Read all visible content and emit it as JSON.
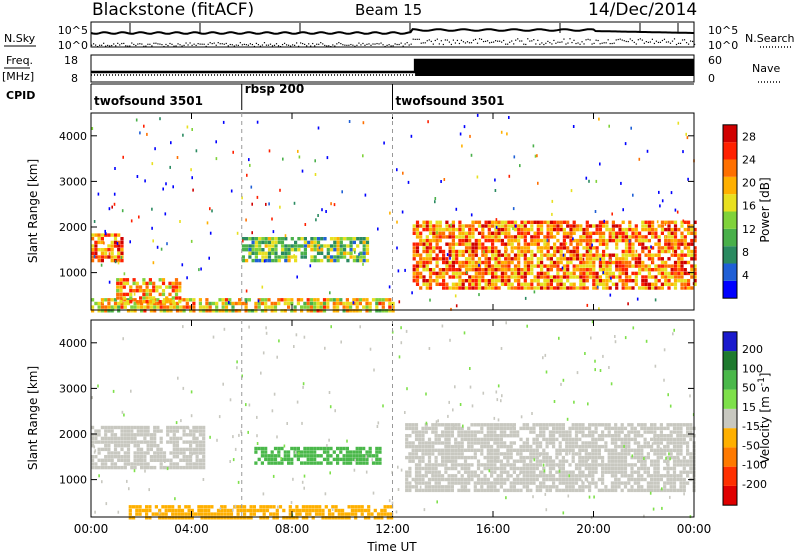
{
  "header": {
    "radar": "Blackstone (fitACF)",
    "beam": "Beam 15",
    "date": "14/Dec/2014"
  },
  "panel_labels": {
    "nsky": "N.Sky",
    "nsearch": "N.Search",
    "freq_top": "Freq.",
    "freq_unit": "[MHz]",
    "nave": "Nave",
    "cpid": "CPID"
  },
  "colors": {
    "power_scale": [
      "#0000ff",
      "#1f5fd6",
      "#2a8a60",
      "#49b04a",
      "#7fd23a",
      "#e8e020",
      "#ffb000",
      "#ff7000",
      "#ff2000",
      "#d00000"
    ],
    "velocity_scale": [
      "#1a1acd",
      "#1e7a2e",
      "#4ab84a",
      "#7ee04a",
      "#c8c8c0",
      "#ffb000",
      "#ff7a00",
      "#ff3000",
      "#e00000"
    ]
  },
  "chart_data": [
    {
      "type": "line",
      "panel": "noise",
      "left_axis_ticks": [
        "10^5",
        "10^0"
      ],
      "right_axis_ticks": [
        "10^5",
        "10^0"
      ],
      "series": [
        {
          "name": "N.Sky",
          "style": "solid"
        },
        {
          "name": "N.Search",
          "style": "dotted"
        }
      ]
    },
    {
      "type": "line",
      "panel": "frequency",
      "left_axis_ticks": [
        18,
        8
      ],
      "right_axis_ticks": [
        60,
        0
      ],
      "series": [
        {
          "name": "Freq. [MHz]",
          "style": "solid"
        },
        {
          "name": "Nave",
          "style": "dotted"
        }
      ]
    },
    {
      "type": "table",
      "panel": "cpid",
      "segments": [
        {
          "label": "twofsound 3501",
          "start": "00:00",
          "end": "06:00"
        },
        {
          "label": "rbsp 200",
          "start": "06:00",
          "end": "12:00"
        },
        {
          "label": "twofsound 3501",
          "start": "12:00",
          "end": "24:00"
        }
      ]
    },
    {
      "type": "heatmap",
      "panel": "power",
      "ylabel": "Slant Range [km]",
      "xlabel": "",
      "x_ticks": [
        "00:00",
        "04:00",
        "08:00",
        "12:00",
        "16:00",
        "20:00",
        "00:00"
      ],
      "y_ticks": [
        1000,
        2000,
        3000,
        4000
      ],
      "ylim": [
        180,
        4500
      ],
      "colorbar_label": "Power [dB]",
      "colorbar_ticks": [
        4,
        8,
        12,
        16,
        20,
        24,
        28
      ],
      "colorbar_range": [
        0,
        30
      ],
      "regions": [
        {
          "t0": 0.0,
          "t1": 1.2,
          "r0": 1300,
          "r1": 1900,
          "level": 22
        },
        {
          "t0": 0.0,
          "t1": 12.0,
          "r0": 200,
          "r1": 500,
          "level": 18
        },
        {
          "t0": 1.0,
          "t1": 3.5,
          "r0": 400,
          "r1": 900,
          "level": 20
        },
        {
          "t0": 6.0,
          "t1": 11.0,
          "r0": 1300,
          "r1": 1800,
          "level": 12
        },
        {
          "t0": 12.8,
          "t1": 24.0,
          "r0": 700,
          "r1": 2200,
          "level": 22
        }
      ]
    },
    {
      "type": "heatmap",
      "panel": "velocity",
      "ylabel": "Slant Range [km]",
      "xlabel": "Time UT",
      "x_ticks": [
        "00:00",
        "04:00",
        "08:00",
        "12:00",
        "16:00",
        "20:00",
        "00:00"
      ],
      "y_ticks": [
        1000,
        2000,
        3000,
        4000
      ],
      "ylim": [
        180,
        4500
      ],
      "colorbar_label": "Velocity [m s^-1]",
      "colorbar_ticks": [
        200,
        100,
        50,
        15,
        -15,
        -50,
        -100,
        -200
      ],
      "colorbar_range": [
        -250,
        250
      ],
      "regions": [
        {
          "t0": 0.0,
          "t1": 4.5,
          "r0": 1300,
          "r1": 2200,
          "level": 0
        },
        {
          "t0": 1.5,
          "t1": 12.0,
          "r0": 200,
          "r1": 500,
          "level": -40
        },
        {
          "t0": 6.5,
          "t1": 11.5,
          "r0": 1400,
          "r1": 1800,
          "level": 60
        },
        {
          "t0": 12.5,
          "t1": 24.0,
          "r0": 800,
          "r1": 2300,
          "level": 0
        }
      ]
    }
  ]
}
